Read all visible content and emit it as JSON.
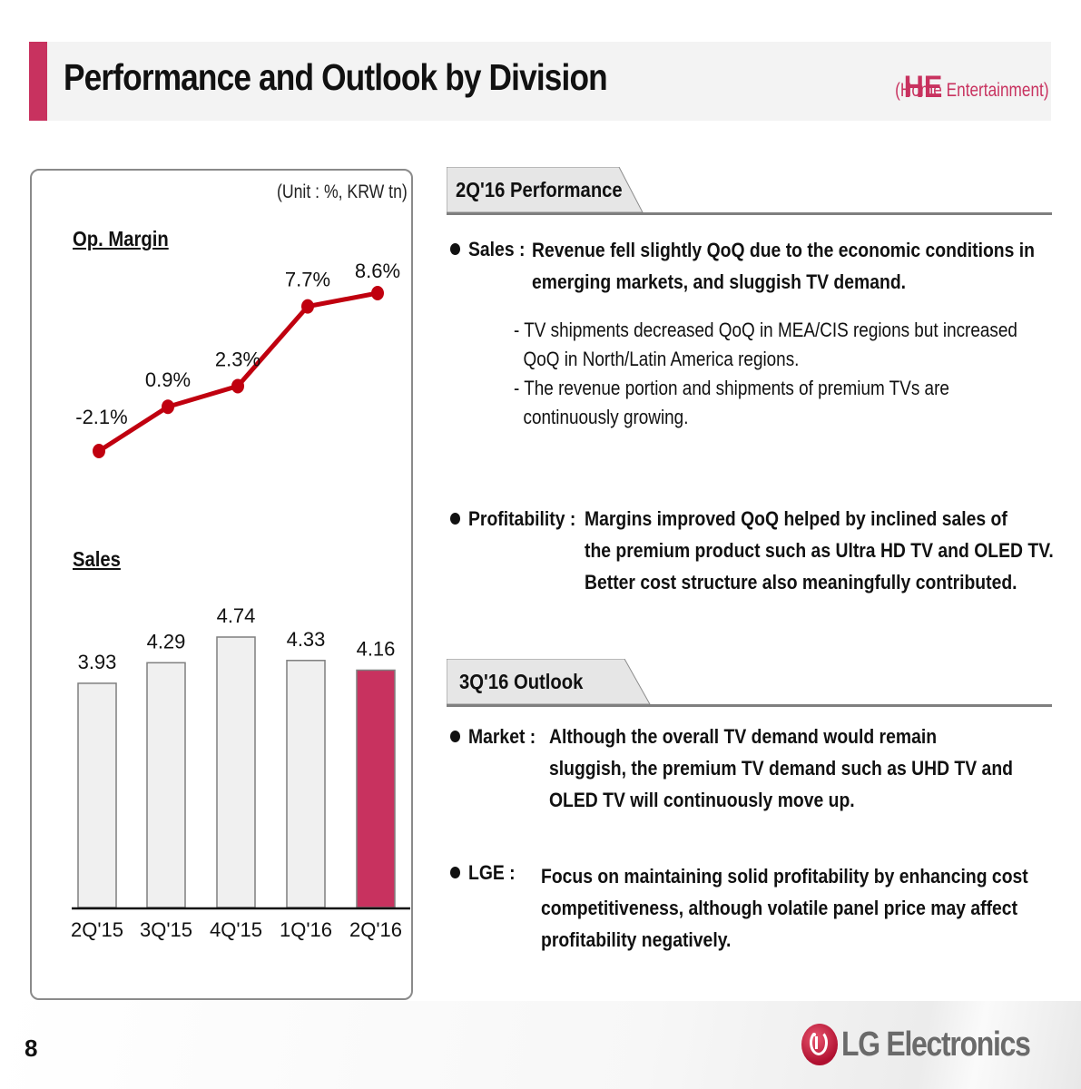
{
  "header": {
    "title": "Performance and Outlook by Division",
    "division_code": "HE",
    "division_name": "(Home Entertainment)",
    "accent_color": "#c8325f"
  },
  "chart_panel": {
    "unit_label": "(Unit : %, KRW tn)",
    "op_margin_label": "Op. Margin",
    "sales_label": "Sales"
  },
  "chart_data": [
    {
      "type": "line",
      "title": "Op. Margin",
      "categories": [
        "2Q'15",
        "3Q'15",
        "4Q'15",
        "1Q'16",
        "2Q'16"
      ],
      "values": [
        -2.1,
        0.9,
        2.3,
        7.7,
        8.6
      ],
      "labels": [
        "-2.1%",
        "0.9%",
        "2.3%",
        "7.7%",
        "8.6%"
      ],
      "unit": "%",
      "color": "#c0000f",
      "grid": false
    },
    {
      "type": "bar",
      "title": "Sales",
      "categories": [
        "2Q'15",
        "3Q'15",
        "4Q'15",
        "1Q'16",
        "2Q'16"
      ],
      "values": [
        3.93,
        4.29,
        4.74,
        4.33,
        4.16
      ],
      "labels": [
        "3.93",
        "4.29",
        "4.74",
        "4.33",
        "4.16"
      ],
      "unit": "KRW tn",
      "bar_color": "#f0f0f0",
      "highlight_color": "#c8325f",
      "highlight_index": 4,
      "ylim": [
        0,
        4.74
      ],
      "grid": false
    }
  ],
  "performance": {
    "tab_label": "2Q'16 Performance",
    "sales": {
      "label": "Sales :",
      "lines": [
        "Revenue fell slightly QoQ due to the economic conditions in",
        "emerging markets, and sluggish TV demand."
      ],
      "subs": [
        [
          "- TV shipments decreased QoQ in MEA/CIS regions but increased",
          "  QoQ in North/Latin America regions."
        ],
        [
          "- The revenue portion and shipments of premium TVs are",
          "  continuously growing."
        ]
      ]
    },
    "profitability": {
      "label": "Profitability :",
      "lines": [
        "Margins improved QoQ helped by inclined sales of",
        "the premium product such as Ultra HD TV and OLED TV.",
        "Better cost structure also meaningfully contributed."
      ]
    }
  },
  "outlook": {
    "tab_label": "3Q'16 Outlook",
    "market": {
      "label": "Market :",
      "lines": [
        "Although the overall TV demand would remain",
        "sluggish, the premium TV demand such as UHD TV and",
        "OLED TV will continuously move up."
      ]
    },
    "lge": {
      "label": "LGE :",
      "lines": [
        "Focus on maintaining solid profitability by enhancing cost",
        "competitiveness, although volatile panel price may affect",
        "profitability negatively."
      ]
    }
  },
  "footer": {
    "page_number": "8",
    "logo_text": "LG Electronics"
  }
}
